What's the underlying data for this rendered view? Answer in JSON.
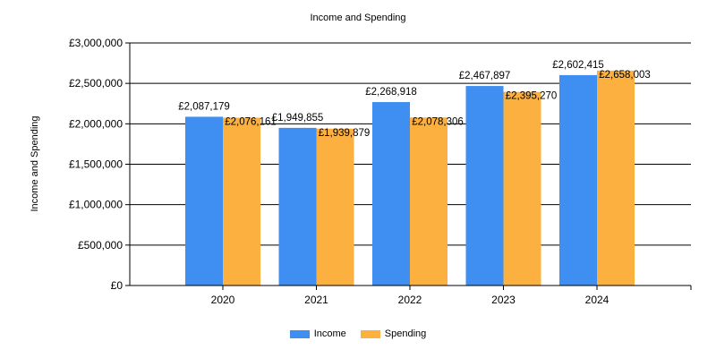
{
  "chart_data": {
    "type": "bar",
    "title": "Income and Spending",
    "xlabel": "",
    "ylabel": "Income and Spending",
    "categories": [
      "2020",
      "2021",
      "2022",
      "2023",
      "2024"
    ],
    "series": [
      {
        "name": "Income",
        "color": "#3f8ff2",
        "values": [
          2087179,
          1949855,
          2268918,
          2467897,
          2602415
        ],
        "labels": [
          "£2,087,179",
          "£1,949,855",
          "£2,268,918",
          "£2,467,897",
          "£2,602,415"
        ]
      },
      {
        "name": "Spending",
        "color": "#fbb03f",
        "values": [
          2076161,
          1939879,
          2078306,
          2395270,
          2658003
        ],
        "labels": [
          "£2,076,161",
          "£1,939,879",
          "£2,078,306",
          "£2,395,270",
          "£2,658,003"
        ]
      }
    ],
    "ylim": [
      0,
      3000000
    ],
    "yticks": [
      0,
      500000,
      1000000,
      1500000,
      2000000,
      2500000,
      3000000
    ],
    "ytick_labels": [
      "£0",
      "£500,000",
      "£1,000,000",
      "£1,500,000",
      "£2,000,000",
      "£2,500,000",
      "£3,000,000"
    ],
    "grid": true,
    "legend_position": "bottom"
  }
}
